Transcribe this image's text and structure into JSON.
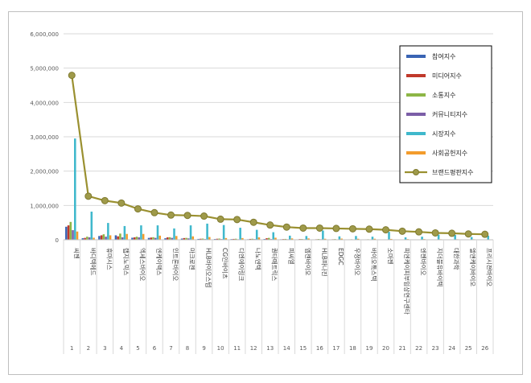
{
  "chart_data": {
    "type": "bar",
    "title": "",
    "xlabel": "",
    "ylabel": "",
    "ylim": [
      0,
      6000000
    ],
    "y_ticks": [
      "0",
      "1,000,000",
      "2,000,000",
      "3,000,000",
      "4,000,000",
      "5,000,000",
      "6,000,000"
    ],
    "grid": true,
    "legend_position": "top-right",
    "categories": [
      "씨젠",
      "바디텍메드",
      "휴마시스",
      "랩지노믹스",
      "엑세스바이오",
      "엔케이맥스",
      "인트론바이오",
      "마크로젠",
      "HLB바이오스텝",
      "CG인바이츠",
      "디엔에이링크",
      "나노엔텍",
      "퀀타매트릭스",
      "피씨엘",
      "엠젠바이오",
      "HLB파나진",
      "EDGC",
      "우정바이오",
      "바이오톡스텍",
      "소마젠",
      "피엔케이피부임상연구센타",
      "엔젠바이오",
      "지더블유바이텍",
      "대한과학",
      "엘앤케이바이오",
      "프리시젼바이오"
    ],
    "ranks": [
      "1",
      "2",
      "3",
      "4",
      "5",
      "6",
      "7",
      "8",
      "9",
      "10",
      "11",
      "12",
      "13",
      "14",
      "15",
      "16",
      "17",
      "18",
      "19",
      "20",
      "21",
      "22",
      "23",
      "24",
      "25",
      "26"
    ],
    "series": [
      {
        "name": "참여지수",
        "color": "#3a64b4",
        "values": [
          380000,
          45000,
          110000,
          130000,
          60000,
          55000,
          45000,
          35000,
          25000,
          22000,
          20000,
          15000,
          22000,
          15000,
          12000,
          10000,
          10000,
          8000,
          8000,
          8000,
          5000,
          6000,
          5000,
          5000,
          4000,
          4000
        ]
      },
      {
        "name": "미디어지수",
        "color": "#c0392b",
        "values": [
          420000,
          55000,
          130000,
          100000,
          70000,
          65000,
          70000,
          50000,
          30000,
          30000,
          25000,
          25000,
          45000,
          20000,
          20000,
          15000,
          15000,
          12000,
          12000,
          10000,
          8000,
          9000,
          8000,
          8000,
          7000,
          6000
        ]
      },
      {
        "name": "소통지수",
        "color": "#8db646",
        "values": [
          520000,
          90000,
          160000,
          180000,
          90000,
          75000,
          75000,
          55000,
          35000,
          35000,
          30000,
          30000,
          55000,
          25000,
          22000,
          22000,
          20000,
          15000,
          15000,
          12000,
          10000,
          10000,
          9000,
          8000,
          8000,
          7000
        ]
      },
      {
        "name": "커뮤니티지수",
        "color": "#7b5ea7",
        "values": [
          280000,
          70000,
          90000,
          70000,
          70000,
          55000,
          55000,
          40000,
          20000,
          20000,
          15000,
          20000,
          20000,
          15000,
          15000,
          15000,
          10000,
          10000,
          10000,
          8000,
          6000,
          7000,
          6000,
          6000,
          5000,
          5000
        ]
      },
      {
        "name": "시장지수",
        "color": "#3fb8cc",
        "values": [
          2950000,
          820000,
          490000,
          400000,
          420000,
          420000,
          330000,
          420000,
          470000,
          430000,
          350000,
          290000,
          220000,
          120000,
          110000,
          270000,
          100000,
          110000,
          90000,
          230000,
          70000,
          90000,
          150000,
          140000,
          80000,
          120000
        ]
      },
      {
        "name": "사회공헌지수",
        "color": "#f39c2c",
        "values": [
          240000,
          60000,
          130000,
          170000,
          170000,
          120000,
          110000,
          100000,
          80000,
          50000,
          50000,
          70000,
          60000,
          40000,
          40000,
          30000,
          35000,
          30000,
          30000,
          25000,
          20000,
          20000,
          15000,
          15000,
          15000,
          10000
        ]
      },
      {
        "name": "브랜드평판지수",
        "color": "#9a9030",
        "type": "line",
        "values": [
          4790000,
          1270000,
          1140000,
          1070000,
          900000,
          790000,
          720000,
          710000,
          690000,
          600000,
          590000,
          510000,
          430000,
          370000,
          340000,
          340000,
          330000,
          320000,
          310000,
          290000,
          250000,
          230000,
          200000,
          190000,
          170000,
          160000
        ]
      }
    ]
  }
}
